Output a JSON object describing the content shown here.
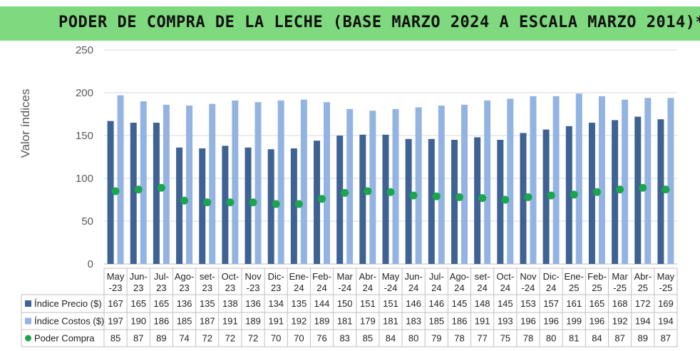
{
  "title": "PODER DE COMPRA DE LA LECHE (BASE MARZO 2024 A ESCALA MARZO 2014)*",
  "chart_data": {
    "type": "bar",
    "title": "PODER DE COMPRA DE LA LECHE (BASE MARZO 2024 A ESCALA MARZO 2014)*",
    "ylabel": "Valor índices",
    "ylim": [
      0,
      250
    ],
    "yticks": [
      0,
      50,
      100,
      150,
      200,
      250
    ],
    "grid": true,
    "legend": "table-left",
    "categories": [
      [
        "May",
        "-23"
      ],
      [
        "Jun-",
        "23"
      ],
      [
        "Jul-",
        "23"
      ],
      [
        "Ago-",
        "23"
      ],
      [
        "set-",
        "23"
      ],
      [
        "Oct-",
        "23"
      ],
      [
        "Nov",
        "-23"
      ],
      [
        "Dic-",
        "23"
      ],
      [
        "Ene-",
        "24"
      ],
      [
        "Feb-",
        "24"
      ],
      [
        "Mar",
        "-24"
      ],
      [
        "Abr-",
        "24"
      ],
      [
        "May",
        "-24"
      ],
      [
        "Jun-",
        "24"
      ],
      [
        "Jul-",
        "24"
      ],
      [
        "Ago-",
        "24"
      ],
      [
        "set-",
        "24"
      ],
      [
        "Oct-",
        "24"
      ],
      [
        "Nov",
        "-24"
      ],
      [
        "Dic-",
        "24"
      ],
      [
        "Ene-",
        "25"
      ],
      [
        "Feb-",
        "25"
      ],
      [
        "Mar",
        "-25"
      ],
      [
        "Abr-",
        "25"
      ],
      [
        "May",
        "-25"
      ]
    ],
    "series": [
      {
        "name": "Índice Precio ($)",
        "kind": "bar",
        "color": "#3e6294",
        "values": [
          167,
          165,
          165,
          136,
          135,
          138,
          136,
          134,
          135,
          144,
          150,
          151,
          151,
          146,
          146,
          145,
          148,
          145,
          153,
          157,
          161,
          165,
          168,
          172,
          169
        ]
      },
      {
        "name": "Índice Costos ($)",
        "kind": "bar",
        "color": "#93b4e3",
        "values": [
          197,
          190,
          186,
          185,
          187,
          191,
          189,
          191,
          192,
          189,
          181,
          179,
          181,
          183,
          185,
          186,
          191,
          193,
          196,
          196,
          199,
          196,
          192,
          194,
          194
        ]
      },
      {
        "name": "Poder Compra",
        "kind": "point",
        "color": "#1aa64a",
        "values": [
          85,
          87,
          89,
          74,
          72,
          72,
          72,
          70,
          70,
          76,
          83,
          85,
          84,
          80,
          79,
          78,
          77,
          75,
          78,
          80,
          81,
          84,
          87,
          89,
          87
        ]
      }
    ]
  }
}
